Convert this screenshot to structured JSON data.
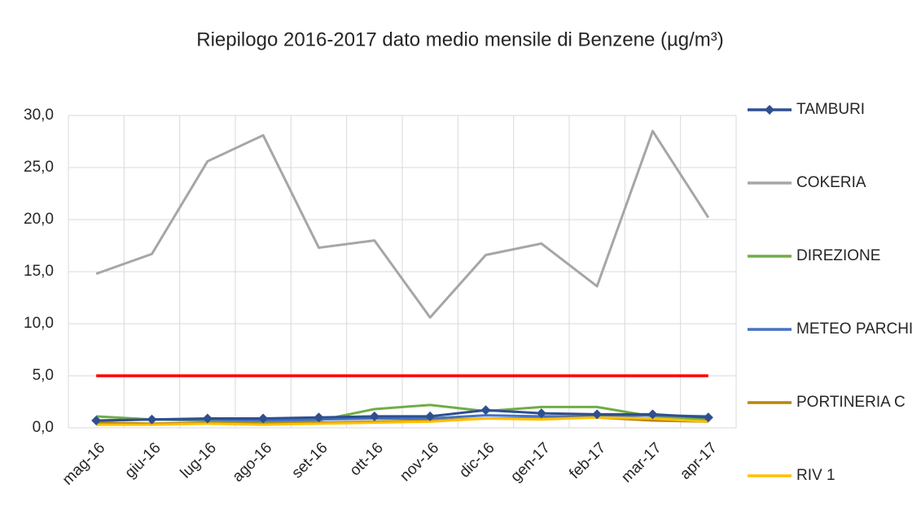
{
  "chart_data": {
    "type": "line",
    "title": "Riepilogo 2016-2017 dato medio mensile di Benzene (µg/m³)",
    "categories": [
      "mag-16",
      "giu-16",
      "lug-16",
      "ago-16",
      "set-16",
      "ott-16",
      "nov-16",
      "dic-16",
      "gen-17",
      "feb-17",
      "mar-17",
      "apr-17"
    ],
    "series": [
      {
        "name": "TAMBURI",
        "color": "#2f4f8f",
        "marker": "diamond",
        "values": [
          0.7,
          0.8,
          0.9,
          0.9,
          1.0,
          1.1,
          1.1,
          1.7,
          1.4,
          1.3,
          1.3,
          1.0
        ]
      },
      {
        "name": "COKERIA",
        "color": "#a6a6a6",
        "values": [
          14.8,
          16.7,
          25.6,
          28.1,
          17.3,
          18.0,
          10.6,
          16.6,
          17.7,
          13.6,
          28.5,
          20.2
        ]
      },
      {
        "name": "DIREZIONE",
        "color": "#70ad47",
        "values": [
          1.1,
          0.8,
          0.7,
          0.6,
          0.7,
          1.8,
          2.2,
          1.6,
          2.0,
          2.0,
          1.1,
          0.8
        ]
      },
      {
        "name": "METEO PARCHI",
        "color": "#4472c4",
        "values": [
          0.7,
          0.8,
          0.8,
          0.7,
          0.8,
          0.9,
          0.9,
          1.2,
          1.1,
          1.1,
          1.2,
          1.1
        ]
      },
      {
        "name": "PORTINERIA C",
        "color": "#b8860b",
        "values": [
          0.5,
          0.4,
          0.5,
          0.4,
          0.5,
          0.6,
          0.7,
          0.9,
          0.9,
          1.0,
          0.7,
          0.6
        ]
      },
      {
        "name": "RIV 1",
        "color": "#ffc000",
        "values": [
          0.3,
          0.3,
          0.4,
          0.3,
          0.4,
          0.5,
          0.6,
          0.9,
          0.8,
          1.0,
          0.9,
          0.6
        ]
      }
    ],
    "reference_line": {
      "value": 5,
      "color": "#ff0000"
    },
    "ylim": [
      0,
      30
    ],
    "yticks": [
      {
        "value": 0,
        "label": "0,0"
      },
      {
        "value": 5,
        "label": "5,0"
      },
      {
        "value": 10,
        "label": "10,0"
      },
      {
        "value": 15,
        "label": "15,0"
      },
      {
        "value": 20,
        "label": "20,0"
      },
      {
        "value": 25,
        "label": "25,0"
      },
      {
        "value": 30,
        "label": "30,0"
      }
    ],
    "grid": true,
    "legend": "right"
  }
}
